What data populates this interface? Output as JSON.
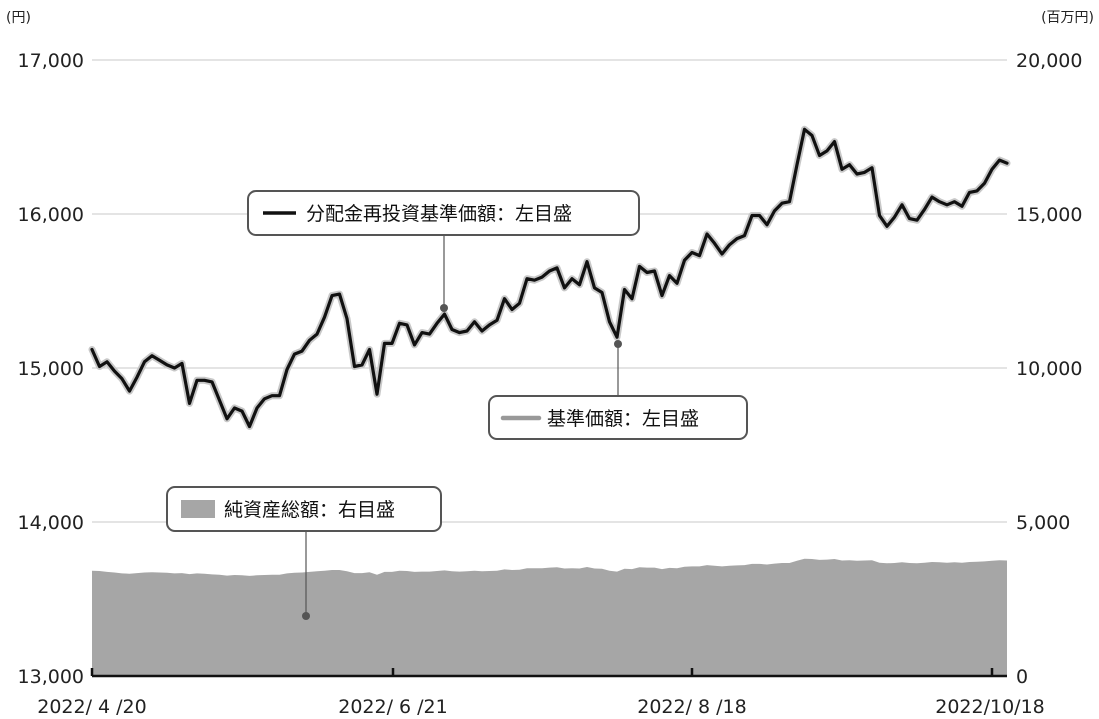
{
  "chart_data": {
    "type": "line",
    "left_unit": "(円)",
    "right_unit": "(百万円)",
    "left_axis": {
      "ylim": [
        13000,
        17000
      ],
      "ticks": [
        "13,000",
        "14,000",
        "15,000",
        "16,000",
        "17,000"
      ]
    },
    "right_axis": {
      "ylim": [
        0,
        20000
      ],
      "ticks": [
        "0",
        "5,000",
        "10,000",
        "15,000",
        "20,000"
      ]
    },
    "x_ticks": [
      "2022/ 4 /20",
      "2022/ 6 /21",
      "2022/ 8 /18",
      "2022/10/18"
    ],
    "grid": true,
    "series": [
      {
        "name": "分配金再投資基準価額：左目盛",
        "axis": "left",
        "style": "line",
        "color": "#111111",
        "values": [
          15120,
          15010,
          15040,
          14980,
          14930,
          14850,
          14940,
          15040,
          15080,
          15050,
          15020,
          15000,
          15030,
          14770,
          14920,
          14920,
          14910,
          14790,
          14670,
          14740,
          14720,
          14620,
          14740,
          14800,
          14820,
          14820,
          14990,
          15090,
          15110,
          15180,
          15220,
          15330,
          15470,
          15480,
          15320,
          15010,
          15020,
          15120,
          14830,
          15160,
          15160,
          15290,
          15280,
          15150,
          15230,
          15220,
          15290,
          15350,
          15250,
          15230,
          15240,
          15300,
          15240,
          15280,
          15310,
          15450,
          15380,
          15420,
          15580,
          15570,
          15590,
          15630,
          15650,
          15520,
          15580,
          15540,
          15690,
          15520,
          15490,
          15300,
          15200,
          15510,
          15450,
          15660,
          15620,
          15630,
          15470,
          15600,
          15550,
          15700,
          15750,
          15730,
          15870,
          15810,
          15740,
          15800,
          15840,
          15860,
          15990,
          15990,
          15930,
          16020,
          16070,
          16080,
          16320,
          16550,
          16510,
          16380,
          16410,
          16470,
          16290,
          16320,
          16260,
          16270,
          16300,
          15990,
          15920,
          15980,
          16060,
          15970,
          15960,
          16030,
          16110,
          16080,
          16060,
          16080,
          16050,
          16140,
          16150,
          16200,
          16290,
          16350,
          16330
        ]
      },
      {
        "name": "基準価額：左目盛",
        "axis": "left",
        "style": "line",
        "color": "#999999"
      },
      {
        "name": "純資産総額：右目盛",
        "axis": "right",
        "style": "area",
        "color": "#a6a6a6",
        "values": [
          3420,
          3410,
          3380,
          3360,
          3330,
          3320,
          3340,
          3360,
          3370,
          3360,
          3350,
          3330,
          3340,
          3310,
          3330,
          3320,
          3300,
          3290,
          3260,
          3280,
          3270,
          3250,
          3270,
          3280,
          3290,
          3290,
          3330,
          3350,
          3360,
          3380,
          3400,
          3420,
          3440,
          3440,
          3400,
          3340,
          3340,
          3370,
          3290,
          3380,
          3380,
          3420,
          3410,
          3380,
          3390,
          3390,
          3410,
          3430,
          3400,
          3390,
          3400,
          3420,
          3400,
          3410,
          3420,
          3460,
          3440,
          3450,
          3500,
          3500,
          3500,
          3520,
          3530,
          3490,
          3500,
          3490,
          3540,
          3490,
          3480,
          3420,
          3390,
          3480,
          3470,
          3530,
          3520,
          3520,
          3470,
          3510,
          3500,
          3550,
          3560,
          3560,
          3600,
          3580,
          3560,
          3580,
          3590,
          3600,
          3640,
          3640,
          3620,
          3650,
          3670,
          3670,
          3740,
          3810,
          3800,
          3770,
          3780,
          3800,
          3750,
          3760,
          3740,
          3750,
          3760,
          3680,
          3660,
          3670,
          3690,
          3670,
          3660,
          3680,
          3700,
          3690,
          3680,
          3690,
          3680,
          3700,
          3710,
          3720,
          3740,
          3760,
          3750
        ]
      }
    ]
  }
}
